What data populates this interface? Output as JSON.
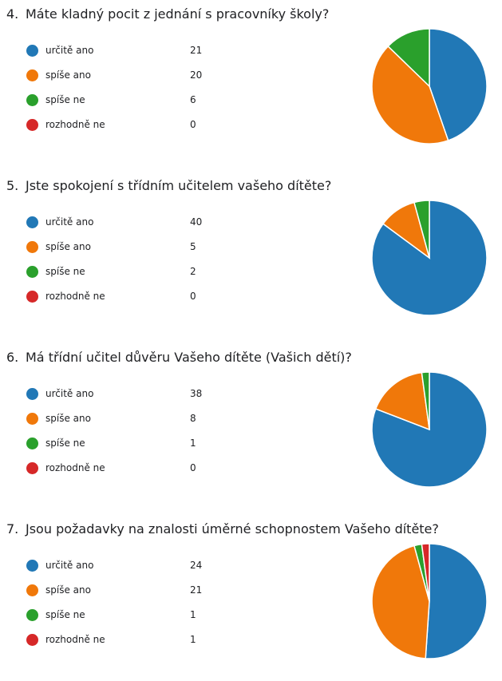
{
  "categories": [
    "určitě ano",
    "spíše ano",
    "spíše ne",
    "rozhodně ne"
  ],
  "colors": [
    "#2178b6",
    "#f0780a",
    "#2aa02c",
    "#d62828"
  ],
  "questions": [
    {
      "number": "4.",
      "title": "Máte kladný pocit z jednání s pracovníky školy?",
      "values": [
        "21",
        "20",
        "6",
        "0"
      ]
    },
    {
      "number": "5.",
      "title": "Jste spokojení s třídním učitelem vašeho dítěte?",
      "values": [
        "40",
        "5",
        "2",
        "0"
      ]
    },
    {
      "number": "6.",
      "title": "Má třídní učitel důvěru Vašeho dítěte (Vašich dětí)?",
      "values": [
        "38",
        "8",
        "1",
        "0"
      ]
    },
    {
      "number": "7.",
      "title": "Jsou požadavky na znalosti úměrné schopnostem Vašeho dítěte?",
      "values": [
        "24",
        "21",
        "1",
        "1"
      ]
    }
  ],
  "chart_data": [
    {
      "type": "pie",
      "categories": [
        "určitě ano",
        "spíše ano",
        "spíše ne",
        "rozhodně ne"
      ],
      "values": [
        21,
        20,
        6,
        0
      ]
    },
    {
      "type": "pie",
      "categories": [
        "určitě ano",
        "spíše ano",
        "spíše ne",
        "rozhodně ne"
      ],
      "values": [
        40,
        5,
        2,
        0
      ]
    },
    {
      "type": "pie",
      "categories": [
        "určitě ano",
        "spíše ano",
        "spíše ne",
        "rozhodně ne"
      ],
      "values": [
        38,
        8,
        1,
        0
      ]
    },
    {
      "type": "pie",
      "categories": [
        "určitě ano",
        "spíše ano",
        "spíše ne",
        "rozhodně ne"
      ],
      "values": [
        24,
        21,
        1,
        1
      ]
    }
  ]
}
